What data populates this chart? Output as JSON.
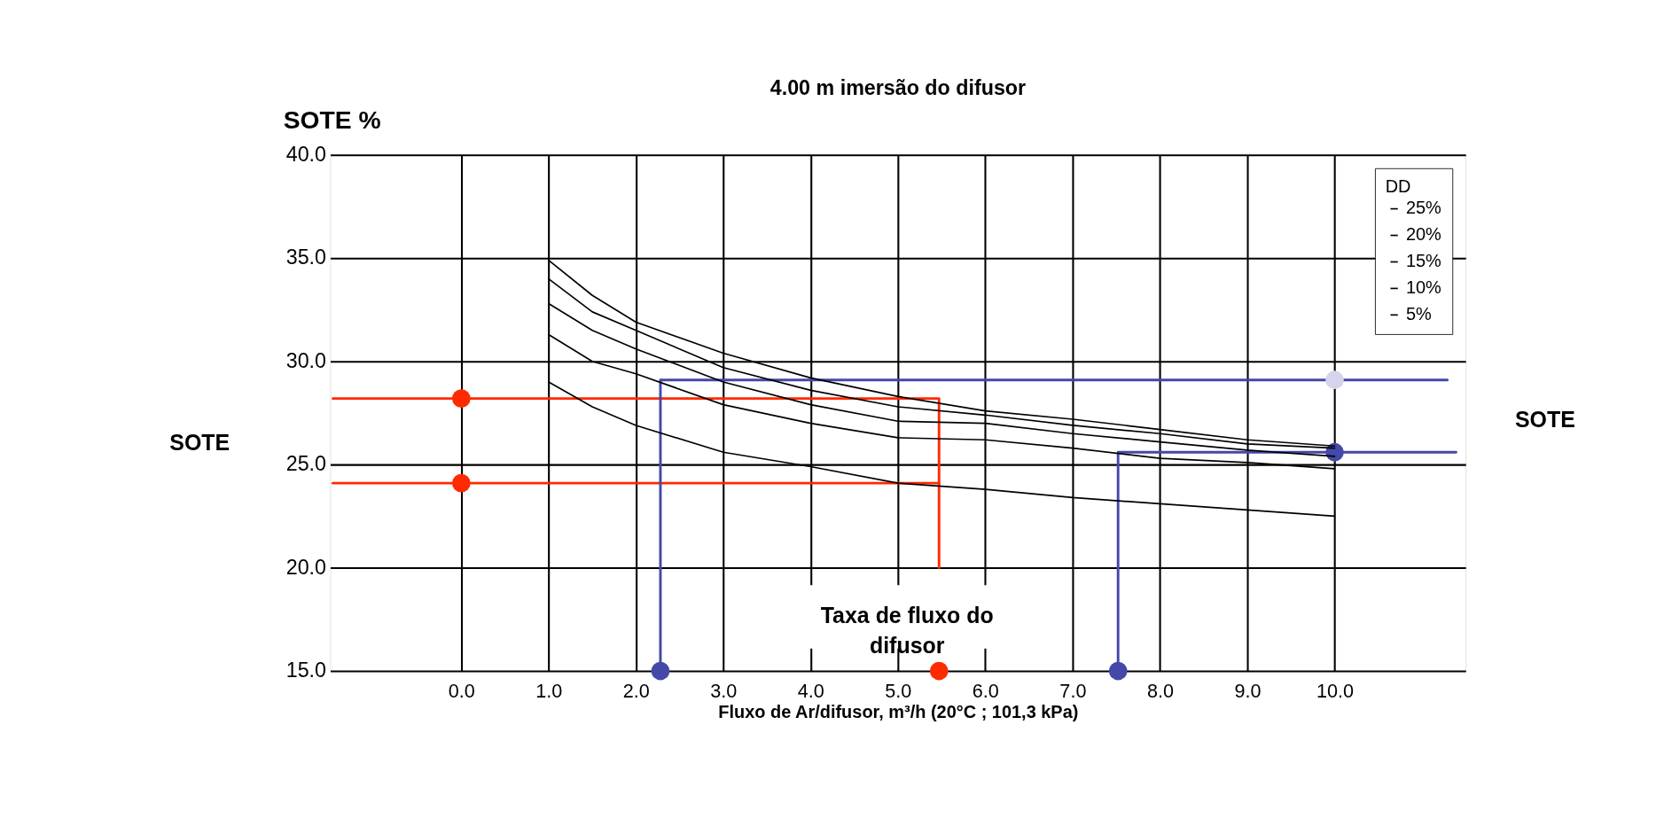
{
  "chart_data": {
    "type": "line",
    "title": "4.00 m imersão do difusor",
    "xlabel": "Fluxo de Ar/difusor,  m³/h (20°C ; 101,3 kPa)",
    "ylabel": "SOTE %",
    "legend_title": "DD",
    "legend": "top right",
    "grid": true,
    "xlim": [
      -1.5,
      11.5
    ],
    "xticks": [
      {
        "value": 0,
        "label": "0.0"
      },
      {
        "value": 1,
        "label": "1.0"
      },
      {
        "value": 2,
        "label": "2.0"
      },
      {
        "value": 3,
        "label": "3.0"
      },
      {
        "value": 4,
        "label": "4.0"
      },
      {
        "value": 5,
        "label": "5.0"
      },
      {
        "value": 6,
        "label": "6.0"
      },
      {
        "value": 7,
        "label": "7.0"
      },
      {
        "value": 8,
        "label": "8.0"
      },
      {
        "value": 9,
        "label": "9.0"
      },
      {
        "value": 10,
        "label": "10.0"
      }
    ],
    "ylim": [
      15,
      40
    ],
    "yticks": [
      {
        "value": 15,
        "label": "15.0"
      },
      {
        "value": 20,
        "label": "20.0"
      },
      {
        "value": 25,
        "label": "25.0"
      },
      {
        "value": 30,
        "label": "30.0"
      },
      {
        "value": 35,
        "label": "35.0"
      },
      {
        "value": 40,
        "label": "40.0"
      }
    ],
    "series": [
      {
        "type": "line",
        "color": "#ff2a00",
        "x": [
          -1.47,
          5.47,
          5.47
        ],
        "values": [
          28.2,
          28.2,
          20.0
        ]
      },
      {
        "type": "line",
        "color": "#ff2a00",
        "x": [
          -1.47,
          5.47
        ],
        "values": [
          24.1,
          24.1
        ]
      },
      {
        "type": "line",
        "color": "#4448a8",
        "x": [
          2.28,
          2.28,
          11.29
        ],
        "values": [
          15,
          29.1,
          29.1
        ]
      },
      {
        "type": "line",
        "color": "#4448a8",
        "x": [
          7.52,
          7.52,
          11.39
        ],
        "values": [
          15,
          25.6,
          25.6
        ]
      },
      {
        "type": "scatter",
        "marker": "circle",
        "color": "#ff2a00",
        "x": [
          0,
          0,
          5.47
        ],
        "values": [
          28.2,
          24.1,
          15
        ]
      },
      {
        "type": "scatter",
        "marker": "circle",
        "color": "#4448a8",
        "x": [
          2.28,
          7.52,
          10
        ],
        "values": [
          15,
          15,
          25.6
        ]
      },
      {
        "type": "scatter",
        "marker": "circle",
        "color": "#d4d4ec",
        "x": [
          10
        ],
        "values": [
          29.1
        ]
      },
      {
        "name": "25%",
        "color": "#000000",
        "x": [
          1,
          1.5,
          2,
          3,
          4,
          5,
          6,
          7,
          8,
          9,
          10
        ],
        "values": [
          34.9,
          33.2,
          31.9,
          30.4,
          29.2,
          28.3,
          27.6,
          27.2,
          26.7,
          26.2,
          25.9
        ]
      },
      {
        "name": "20%",
        "color": "#000000",
        "x": [
          1,
          1.5,
          2,
          3,
          4,
          5,
          6,
          7,
          8,
          9,
          10
        ],
        "values": [
          34.0,
          32.4,
          31.5,
          29.7,
          28.6,
          27.8,
          27.4,
          26.9,
          26.5,
          26.0,
          25.8
        ]
      },
      {
        "name": "15%",
        "color": "#000000",
        "x": [
          1,
          1.5,
          2,
          3,
          4,
          5,
          6,
          7,
          8,
          9,
          10
        ],
        "values": [
          32.8,
          31.5,
          30.6,
          29.0,
          27.9,
          27.1,
          27.0,
          26.5,
          26.1,
          25.7,
          25.4
        ]
      },
      {
        "name": "10%",
        "color": "#000000",
        "x": [
          1,
          1.5,
          2,
          3,
          4,
          5,
          6,
          7,
          8,
          9,
          10
        ],
        "values": [
          31.3,
          30.0,
          29.4,
          27.9,
          27.0,
          26.3,
          26.2,
          25.8,
          25.3,
          25.1,
          24.8
        ]
      },
      {
        "name": "5%",
        "color": "#000000",
        "x": [
          1,
          1.5,
          2,
          3,
          4,
          5,
          6,
          7,
          8,
          9,
          10
        ],
        "values": [
          29.0,
          27.8,
          26.9,
          25.6,
          24.9,
          24.1,
          23.8,
          23.4,
          23.1,
          22.8,
          22.5
        ]
      }
    ],
    "annotations": [
      "SOTE",
      "SOTE",
      "Taxa de fluxo do\ndifusor"
    ]
  }
}
